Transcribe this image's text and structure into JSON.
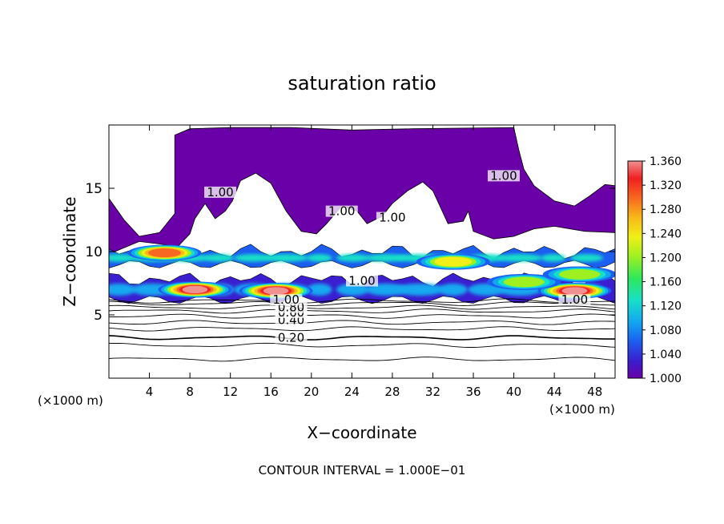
{
  "chart_data": {
    "type": "heatmap",
    "title": "saturation ratio",
    "xlabel": "X−coordinate",
    "ylabel": "Z−coordinate",
    "x_unit_left": "(×1000 m)",
    "x_unit_right": "(×1000 m)",
    "xlim": [
      0,
      50
    ],
    "ylim": [
      0,
      20
    ],
    "x_ticks": [
      4,
      8,
      12,
      16,
      20,
      24,
      28,
      32,
      36,
      40,
      44,
      48
    ],
    "x_tick_labels": [
      "4",
      "8",
      "12",
      "16",
      "20",
      "24",
      "28",
      "32",
      "36",
      "40",
      "44",
      "48"
    ],
    "y_ticks": [
      5,
      10,
      15
    ],
    "y_tick_labels": [
      "5",
      "10",
      "15"
    ],
    "colorbar": {
      "min": 1.0,
      "max": 1.36,
      "labels": [
        "1.360",
        "1.320",
        "1.280",
        "1.240",
        "1.200",
        "1.160",
        "1.120",
        "1.080",
        "1.040",
        "1.000"
      ],
      "colors": [
        "#6a00a8",
        "#3a1ecf",
        "#1c5ef0",
        "#12a8f0",
        "#18e0c8",
        "#2ee85c",
        "#9ef020",
        "#f0f018",
        "#f8b818",
        "#f86820",
        "#f02020",
        "#f09090"
      ]
    },
    "contour_interval": "CONTOUR INTERVAL = 1.000E−01",
    "contour_labels": [
      {
        "text": "0.20",
        "x": 18,
        "z": 3.0
      },
      {
        "text": "0.40",
        "x": 18,
        "z": 4.4
      },
      {
        "text": "0.60",
        "x": 18,
        "z": 5.0
      },
      {
        "text": "0.80",
        "x": 18,
        "z": 5.4
      },
      {
        "text": "1.00",
        "x": 17.5,
        "z": 6.0
      },
      {
        "text": "1.00",
        "x": 25,
        "z": 7.5
      },
      {
        "text": "1.00",
        "x": 46,
        "z": 6.0
      },
      {
        "text": "1.00",
        "x": 23,
        "z": 13
      },
      {
        "text": "1.00",
        "x": 28,
        "z": 12.5
      },
      {
        "text": "1.00",
        "x": 11,
        "z": 14.5
      },
      {
        "text": "1.00",
        "x": 39,
        "z": 15.8
      }
    ],
    "contour_levels_z": [
      1.5,
      2.6,
      3.2,
      3.9,
      4.4,
      4.9,
      5.3,
      5.6,
      5.9,
      6.1
    ],
    "regions": [
      {
        "level": 1.0,
        "shape": "upper-cloud",
        "x": [
          6.5,
          50
        ],
        "z": [
          8.5,
          20
        ]
      },
      {
        "level": 1.12,
        "shape": "band",
        "x": [
          0,
          50
        ],
        "z": [
          9,
          10
        ]
      },
      {
        "level": 1.1,
        "shape": "band",
        "x": [
          0,
          50
        ],
        "z": [
          6.2,
          7.8
        ]
      },
      {
        "level": 1.36,
        "x": 8.5,
        "z": 7.0
      },
      {
        "level": 1.36,
        "x": 16.5,
        "z": 6.9
      },
      {
        "level": 1.36,
        "x": 46,
        "z": 6.9
      },
      {
        "level": 1.3,
        "x": 5.5,
        "z": 9.9
      },
      {
        "level": 1.24,
        "x": 34,
        "z": 9.2
      },
      {
        "level": 1.2,
        "x": 41,
        "z": 7.6
      },
      {
        "level": 1.2,
        "x": 46.5,
        "z": 8.2
      }
    ]
  }
}
